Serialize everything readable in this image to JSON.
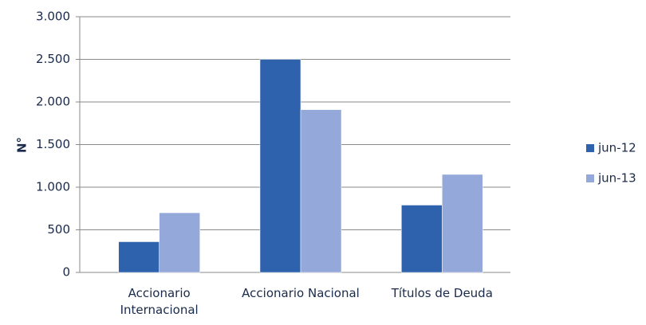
{
  "chart_data": {
    "type": "bar",
    "y_label": "N°",
    "categories": [
      "Accionario Internacional",
      "Accionario Nacional",
      "Títulos de Deuda"
    ],
    "series": [
      {
        "name": "jun-12",
        "color": "#2f62ad",
        "values": [
          360,
          2500,
          790
        ]
      },
      {
        "name": "jun-13",
        "color": "#95a8da",
        "values": [
          700,
          1910,
          1150
        ]
      }
    ],
    "ylim": [
      0,
      3000
    ],
    "yticks": [
      0,
      500,
      {
        "value": 1000,
        "label": "1.000"
      },
      {
        "value": 1500,
        "label": "1.500"
      },
      {
        "value": 2000,
        "label": "2.000"
      },
      {
        "value": 2500,
        "label": "2.500"
      },
      {
        "value": 3000,
        "label": "3.000"
      }
    ],
    "grid": true,
    "legend": "right"
  }
}
